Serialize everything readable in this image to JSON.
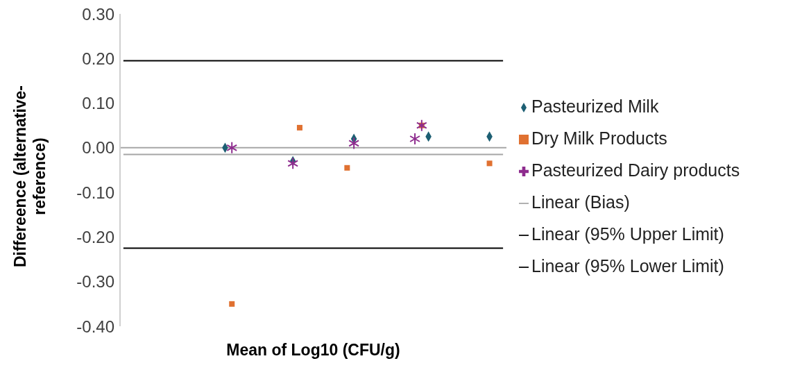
{
  "chart_data": {
    "type": "scatter",
    "xlabel": "Mean of Log10 (CFU/g)",
    "ylabel": "Differeence (alternative-reference)",
    "categories": [
      null,
      null,
      null,
      null,
      null,
      null,
      null,
      null,
      null,
      null,
      null,
      null,
      null,
      null,
      null,
      null,
      null,
      null,
      null,
      null,
      null,
      null,
      null,
      null,
      null,
      null,
      null,
      null,
      null,
      null,
      null,
      null,
      null,
      null,
      null,
      null,
      null,
      null,
      null,
      null,
      null,
      null,
      null,
      null,
      null,
      null,
      null,
      null,
      null,
      null,
      null,
      null,
      null,
      null,
      null,
      null,
      null
    ],
    "ylim": [
      -0.4,
      0.3
    ],
    "yticks": [
      {
        "value": -0.4,
        "label": "-0.40"
      },
      {
        "value": -0.3,
        "label": "-0.30"
      },
      {
        "value": -0.2,
        "label": "-0.20"
      },
      {
        "value": -0.1,
        "label": "-0.10"
      },
      {
        "value": 0,
        "label": "0.00"
      },
      {
        "value": 0.1,
        "label": "0.10"
      },
      {
        "value": 0.2,
        "label": "0.20"
      },
      {
        "value": 0.3,
        "label": "0.30"
      }
    ],
    "tick_labels": "y",
    "grid": false,
    "legend": "right",
    "ref_lines": [
      {
        "axis": "y",
        "value": 0,
        "color": "#a6a6a6"
      }
    ],
    "series": [
      {
        "name": "Pasteurized Milk",
        "type": "scatter",
        "marker": "diamond",
        "color": "#1d5f73",
        "values": [
          null,
          null,
          null,
          null,
          null,
          null,
          null,
          null,
          null,
          null,
          null,
          null,
          null,
          null,
          null,
          0.0,
          null,
          null,
          null,
          null,
          null,
          null,
          null,
          null,
          null,
          -0.03,
          null,
          null,
          null,
          null,
          null,
          null,
          null,
          null,
          0.02,
          null,
          null,
          null,
          null,
          null,
          null,
          null,
          null,
          null,
          null,
          0.025,
          null,
          null,
          null,
          null,
          null,
          null,
          null,
          null,
          0.025,
          null,
          null
        ]
      },
      {
        "name": "Dry Milk Products",
        "type": "scatter",
        "marker": "square",
        "color": "#e07131",
        "values": [
          null,
          null,
          null,
          null,
          null,
          null,
          null,
          null,
          null,
          null,
          null,
          null,
          null,
          null,
          null,
          null,
          -0.35,
          null,
          null,
          null,
          null,
          null,
          null,
          null,
          null,
          null,
          0.045,
          null,
          null,
          null,
          null,
          null,
          null,
          -0.045,
          null,
          null,
          null,
          null,
          null,
          null,
          null,
          null,
          null,
          null,
          0.05,
          null,
          null,
          null,
          null,
          null,
          null,
          null,
          null,
          null,
          -0.035,
          null,
          null
        ]
      },
      {
        "name": "Pasteurized Dairy products",
        "type": "scatter",
        "marker": "cross",
        "color": "#8e2c8e",
        "values": [
          null,
          null,
          null,
          null,
          null,
          null,
          null,
          null,
          null,
          null,
          null,
          null,
          null,
          null,
          null,
          null,
          0.0,
          null,
          null,
          null,
          null,
          null,
          null,
          null,
          null,
          -0.035,
          null,
          null,
          null,
          null,
          null,
          null,
          null,
          null,
          0.01,
          null,
          null,
          null,
          null,
          null,
          null,
          null,
          null,
          0.02,
          0.05,
          null,
          null,
          null,
          null,
          null,
          null,
          null,
          null,
          null,
          null,
          null,
          null
        ]
      },
      {
        "name": "Linear (Bias)",
        "type": "line",
        "color": "#a6a6a6",
        "values": [
          -0.015,
          -0.015,
          -0.015,
          -0.015,
          -0.015,
          -0.015,
          -0.015,
          -0.015,
          -0.015,
          -0.015,
          -0.015,
          -0.015,
          -0.015,
          -0.015,
          -0.015,
          -0.015,
          -0.015,
          -0.015,
          -0.015,
          -0.015,
          -0.015,
          -0.015,
          -0.015,
          -0.015,
          -0.015,
          -0.015,
          -0.015,
          -0.015,
          -0.015,
          -0.015,
          -0.015,
          -0.015,
          -0.015,
          -0.015,
          -0.015,
          -0.015,
          -0.015,
          -0.015,
          -0.015,
          -0.015,
          -0.015,
          -0.015,
          -0.015,
          -0.015,
          -0.015,
          -0.015,
          -0.015,
          -0.015,
          -0.015,
          -0.015,
          -0.015,
          -0.015,
          -0.015,
          -0.015,
          -0.015,
          -0.015,
          -0.015
        ]
      },
      {
        "name": "Linear (95% Upper Limit)",
        "type": "line",
        "color": "#000000",
        "values": [
          0.195,
          0.195,
          0.195,
          0.195,
          0.195,
          0.195,
          0.195,
          0.195,
          0.195,
          0.195,
          0.195,
          0.195,
          0.195,
          0.195,
          0.195,
          0.195,
          0.195,
          0.195,
          0.195,
          0.195,
          0.195,
          0.195,
          0.195,
          0.195,
          0.195,
          0.195,
          0.195,
          0.195,
          0.195,
          0.195,
          0.195,
          0.195,
          0.195,
          0.195,
          0.195,
          0.195,
          0.195,
          0.195,
          0.195,
          0.195,
          0.195,
          0.195,
          0.195,
          0.195,
          0.195,
          0.195,
          0.195,
          0.195,
          0.195,
          0.195,
          0.195,
          0.195,
          0.195,
          0.195,
          0.195,
          0.195,
          0.195
        ]
      },
      {
        "name": "Linear (95% Lower Limit)",
        "type": "line",
        "color": "#000000",
        "values": [
          -0.225,
          -0.225,
          -0.225,
          -0.225,
          -0.225,
          -0.225,
          -0.225,
          -0.225,
          -0.225,
          -0.225,
          -0.225,
          -0.225,
          -0.225,
          -0.225,
          -0.225,
          -0.225,
          -0.225,
          -0.225,
          -0.225,
          -0.225,
          -0.225,
          -0.225,
          -0.225,
          -0.225,
          -0.225,
          -0.225,
          -0.225,
          -0.225,
          -0.225,
          -0.225,
          -0.225,
          -0.225,
          -0.225,
          -0.225,
          -0.225,
          -0.225,
          -0.225,
          -0.225,
          -0.225,
          -0.225,
          -0.225,
          -0.225,
          -0.225,
          -0.225,
          -0.225,
          -0.225,
          -0.225,
          -0.225,
          -0.225,
          -0.225,
          -0.225,
          -0.225,
          -0.225,
          -0.225,
          -0.225,
          -0.225,
          -0.225
        ]
      }
    ]
  }
}
